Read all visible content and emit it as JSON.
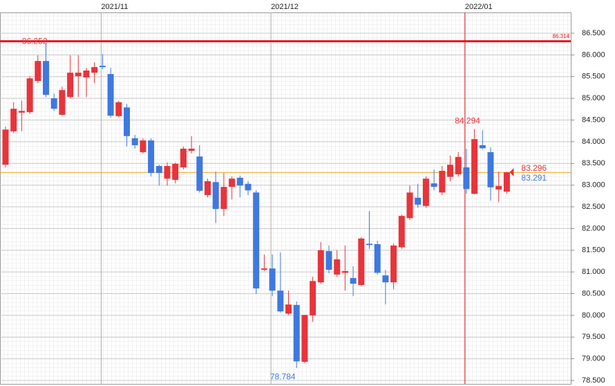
{
  "chart_data": {
    "type": "candlestick",
    "categories": [
      null,
      null,
      null,
      null,
      null,
      null,
      null,
      null,
      null,
      null,
      null,
      null,
      "2021/11",
      null,
      null,
      null,
      null,
      null,
      null,
      null,
      null,
      null,
      null,
      null,
      null,
      null,
      null,
      null,
      null,
      null,
      null,
      null,
      null,
      "2021/12",
      null,
      null,
      null,
      null,
      null,
      null,
      null,
      null,
      null,
      null,
      null,
      null,
      null,
      null,
      null,
      null,
      null,
      null,
      null,
      null,
      null,
      null,
      null,
      "2022/01",
      null,
      null,
      null,
      null,
      null
    ],
    "open": [
      83.47,
      84.24,
      84.67,
      84.68,
      85.4,
      85.86,
      85.0,
      84.62,
      85.03,
      85.51,
      85.48,
      85.59,
      85.75,
      85.56,
      84.59,
      84.79,
      84.08,
      83.76,
      84.03,
      83.44,
      83.15,
      83.12,
      83.41,
      83.79,
      83.66,
      82.77,
      83.07,
      82.45,
      82.96,
      83.17,
      83.03,
      82.83,
      81.05,
      81.08,
      80.57,
      80.04,
      80.24,
      78.93,
      80.0,
      80.76,
      81.48,
      80.94,
      80.98,
      80.86,
      80.7,
      81.65,
      81.64,
      80.92,
      80.76,
      81.57,
      82.24,
      82.71,
      82.52,
      83.04,
      82.83,
      83.19,
      83.25,
      83.41,
      82.8,
      83.92,
      83.76,
      82.9,
      82.85
    ],
    "high": [
      84.35,
      84.91,
      84.95,
      85.51,
      85.99,
      86.252,
      85.11,
      85.27,
      85.99,
      85.99,
      85.7,
      85.83,
      86.02,
      85.7,
      84.94,
      84.87,
      84.16,
      84.08,
      84.08,
      83.47,
      83.52,
      83.52,
      83.89,
      84.13,
      83.92,
      83.15,
      83.31,
      83.28,
      83.2,
      83.22,
      83.09,
      82.88,
      81.4,
      81.4,
      81.45,
      80.57,
      80.32,
      80.01,
      80.89,
      81.69,
      81.61,
      81.5,
      81.61,
      81.13,
      81.8,
      82.4,
      81.72,
      81.05,
      81.66,
      82.32,
      82.99,
      83.03,
      83.2,
      83.36,
      83.44,
      83.68,
      83.76,
      83.84,
      84.294,
      84.27,
      83.87,
      83.31,
      83.31
    ],
    "low": [
      83.41,
      84.2,
      84.24,
      84.64,
      85.35,
      85.03,
      84.71,
      84.6,
      85.0,
      85.03,
      85.03,
      85.35,
      85.67,
      84.56,
      84.56,
      83.89,
      83.84,
      83.73,
      83.2,
      82.99,
      82.99,
      83.04,
      83.36,
      83.73,
      82.83,
      82.72,
      82.13,
      82.29,
      82.67,
      82.72,
      82.77,
      80.49,
      81.02,
      80.44,
      80.06,
      80.01,
      78.784,
      78.9,
      79.85,
      80.73,
      80.97,
      80.89,
      80.57,
      80.44,
      80.67,
      81.53,
      80.94,
      80.25,
      80.6,
      81.53,
      82.2,
      82.48,
      82.48,
      82.88,
      82.77,
      83.09,
      83.2,
      82.8,
      82.79,
      83.82,
      82.64,
      82.61,
      82.8
    ],
    "close": [
      84.28,
      84.76,
      84.71,
      85.46,
      85.86,
      85.08,
      84.76,
      85.19,
      85.59,
      85.59,
      85.64,
      85.72,
      85.72,
      84.6,
      84.91,
      84.13,
      83.92,
      84.03,
      83.28,
      83.28,
      83.44,
      83.49,
      83.84,
      83.84,
      82.87,
      83.09,
      82.45,
      82.96,
      83.15,
      82.99,
      82.88,
      80.62,
      81.08,
      80.57,
      80.09,
      80.25,
      78.94,
      80.01,
      80.79,
      81.5,
      81.05,
      81.29,
      81.02,
      80.73,
      81.77,
      81.62,
      80.98,
      80.76,
      81.61,
      82.29,
      82.83,
      82.55,
      83.15,
      82.96,
      83.33,
      83.47,
      83.65,
      82.91,
      84.06,
      83.85,
      82.95,
      82.98,
      83.296
    ],
    "up_color": "#e8343a",
    "down_color": "#3f78e0",
    "reference_lines": [
      {
        "value": 86.314,
        "color": "#e8141c"
      },
      {
        "value": 83.291,
        "color": "#f5a623"
      }
    ],
    "ylim": [
      78.5,
      86.5
    ],
    "yticks": [
      {
        "value": 78.5,
        "label": "78.500"
      },
      {
        "value": 79,
        "label": "79.000"
      },
      {
        "value": 79.5,
        "label": "79.500"
      },
      {
        "value": 80,
        "label": "80.000"
      },
      {
        "value": 80.5,
        "label": "80.500"
      },
      {
        "value": 81,
        "label": "81.000"
      },
      {
        "value": 81.5,
        "label": "81.500"
      },
      {
        "value": 82,
        "label": "82.000"
      },
      {
        "value": 82.5,
        "label": "82.500"
      },
      {
        "value": 83,
        "label": "83.000"
      },
      {
        "value": 83.5,
        "label": "83.500"
      },
      {
        "value": 84,
        "label": "84.000"
      },
      {
        "value": 84.5,
        "label": "84.500"
      },
      {
        "value": 85,
        "label": "85.000"
      },
      {
        "value": 85.5,
        "label": "85.500"
      },
      {
        "value": 86,
        "label": "86.000"
      },
      {
        "value": 86.5,
        "label": "86.500"
      }
    ],
    "grid": true
  }
}
